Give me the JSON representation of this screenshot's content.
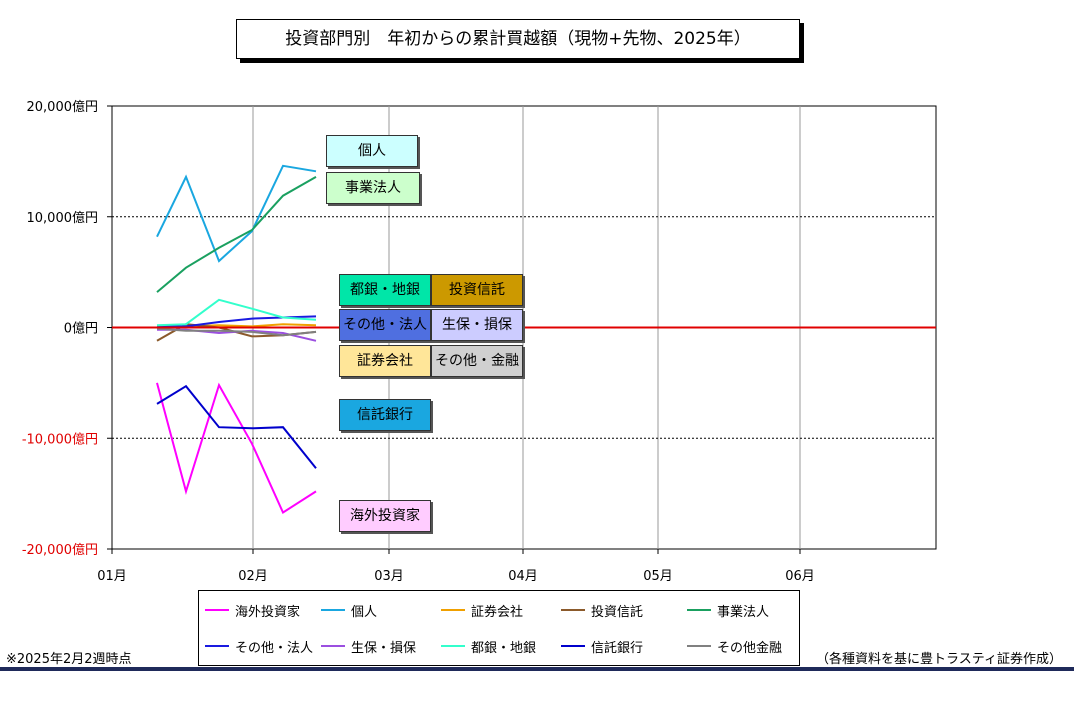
{
  "title": "投資部門別　年初からの累計買越額（現物+先物、2025年）",
  "footnote": "※2025年2月2週時点",
  "source": "（各種資料を基に豊トラスティ証券作成）",
  "chart_data": {
    "type": "line",
    "x": [
      "1月2週",
      "1月3週",
      "1月4週",
      "1月5週",
      "2月1週",
      "2月2週"
    ],
    "x_tick_labels": [
      "01月",
      "02月",
      "03月",
      "04月",
      "05月",
      "06月"
    ],
    "y_tick_labels": [
      "20,000億円",
      "10,000億円",
      "0億円",
      "-10,000億円",
      "-20,000億円"
    ],
    "ylim": [
      -20000,
      20000
    ],
    "unit": "億円",
    "grid": true,
    "zero_line_color": "#e00000",
    "series": [
      {
        "name": "海外投資家",
        "color": "#ff00ff",
        "values": [
          -5000,
          -14800,
          -5200,
          -10500,
          -16700,
          -14800
        ]
      },
      {
        "name": "個人",
        "color": "#1aa7e0",
        "values": [
          8200,
          13600,
          6000,
          8700,
          14600,
          14100
        ]
      },
      {
        "name": "証券会社",
        "color": "#f0a000",
        "values": [
          -100,
          100,
          200,
          100,
          300,
          200
        ]
      },
      {
        "name": "投資信託",
        "color": "#8b5a2b",
        "values": [
          -1200,
          300,
          0,
          -800,
          -700,
          -400
        ]
      },
      {
        "name": "事業法人",
        "color": "#1aa060",
        "values": [
          3200,
          5400,
          7200,
          8800,
          11900,
          13600
        ]
      },
      {
        "name": "その他・法人",
        "color": "#1a1ae0",
        "values": [
          100,
          100,
          500,
          800,
          900,
          1000
        ]
      },
      {
        "name": "生保・損保",
        "color": "#9b4fe0",
        "values": [
          -200,
          -200,
          -500,
          -300,
          -500,
          -1200
        ]
      },
      {
        "name": "都銀・地銀",
        "color": "#33ffcc",
        "values": [
          200,
          300,
          2500,
          1700,
          900,
          700
        ]
      },
      {
        "name": "信託銀行",
        "color": "#0000cc",
        "values": [
          -6900,
          -5300,
          -9000,
          -9100,
          -9000,
          -12700
        ]
      },
      {
        "name": "その他金融",
        "color": "#808080",
        "values": [
          -100,
          -300,
          -300,
          -400,
          -700,
          -400
        ]
      }
    ],
    "annotations": [
      {
        "text": "個人",
        "bg": "#ccffff"
      },
      {
        "text": "事業法人",
        "bg": "#ccffcc"
      },
      {
        "text": "都銀・地銀",
        "bg": "#00e6a8"
      },
      {
        "text": "投資信託",
        "bg": "#cc9900"
      },
      {
        "text": "その他・法人",
        "bg": "#4f6fe0"
      },
      {
        "text": "生保・損保",
        "bg": "#ccccff"
      },
      {
        "text": "証券会社",
        "bg": "#ffe699"
      },
      {
        "text": "その他・金融",
        "bg": "#d0d0d0"
      },
      {
        "text": "信託銀行",
        "bg": "#1aa7e0"
      },
      {
        "text": "海外投資家",
        "bg": "#ffccff"
      }
    ]
  }
}
